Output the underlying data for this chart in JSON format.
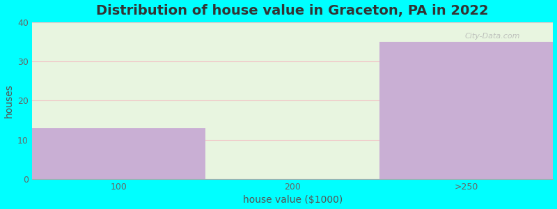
{
  "categories": [
    "100",
    "200",
    ">250"
  ],
  "values": [
    13,
    0,
    35
  ],
  "bar_color": "#c9afd4",
  "plot_bg_color": "#e8f5e0",
  "fig_bg_color": "#00ffff",
  "title": "Distribution of house value in Graceton, PA in 2022",
  "xlabel": "house value ($1000)",
  "ylabel": "houses",
  "ylim": [
    0,
    40
  ],
  "yticks": [
    0,
    10,
    20,
    30,
    40
  ],
  "title_fontsize": 14,
  "label_fontsize": 10,
  "tick_fontsize": 9,
  "watermark": "City-Data.com",
  "grid_color": "#f0c8c8",
  "n_bars": 3
}
